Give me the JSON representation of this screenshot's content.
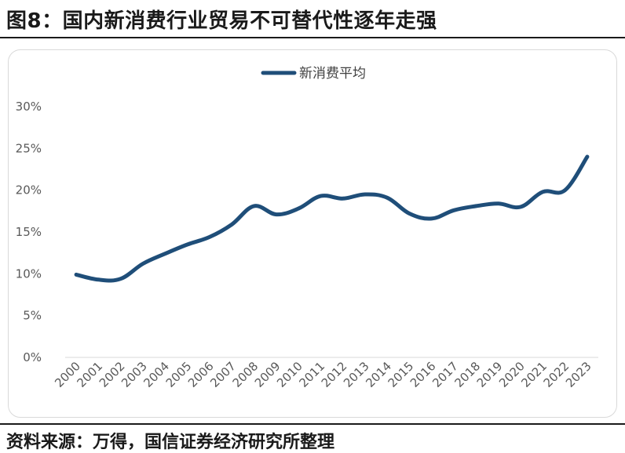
{
  "header": {
    "title": "图8：国内新消费行业贸易不可替代性逐年走强"
  },
  "footer": {
    "source": "资料来源：万得，国信证券经济研究所整理"
  },
  "colors": {
    "line": "#1f4e79",
    "axis": "#d9d9d9",
    "text": "#595959"
  },
  "chart_data": {
    "type": "line",
    "title": "",
    "xlabel": "",
    "ylabel": "",
    "legend_position": "top",
    "grid": false,
    "ylim": [
      0,
      30
    ],
    "yticks": [
      "0%",
      "5%",
      "10%",
      "15%",
      "20%",
      "25%",
      "30%"
    ],
    "categories": [
      "2000",
      "2001",
      "2002",
      "2003",
      "2004",
      "2005",
      "2006",
      "2007",
      "2008",
      "2009",
      "2010",
      "2011",
      "2012",
      "2013",
      "2014",
      "2015",
      "2016",
      "2017",
      "2018",
      "2019",
      "2020",
      "2021",
      "2022",
      "2023"
    ],
    "series": [
      {
        "name": "新消费平均",
        "values": [
          9.9,
          9.3,
          9.4,
          11.2,
          12.4,
          13.5,
          14.4,
          15.9,
          18.1,
          17.1,
          17.8,
          19.3,
          19.0,
          19.5,
          19.1,
          17.2,
          16.6,
          17.6,
          18.1,
          18.4,
          18.0,
          19.8,
          20.0,
          24.0
        ]
      }
    ]
  }
}
